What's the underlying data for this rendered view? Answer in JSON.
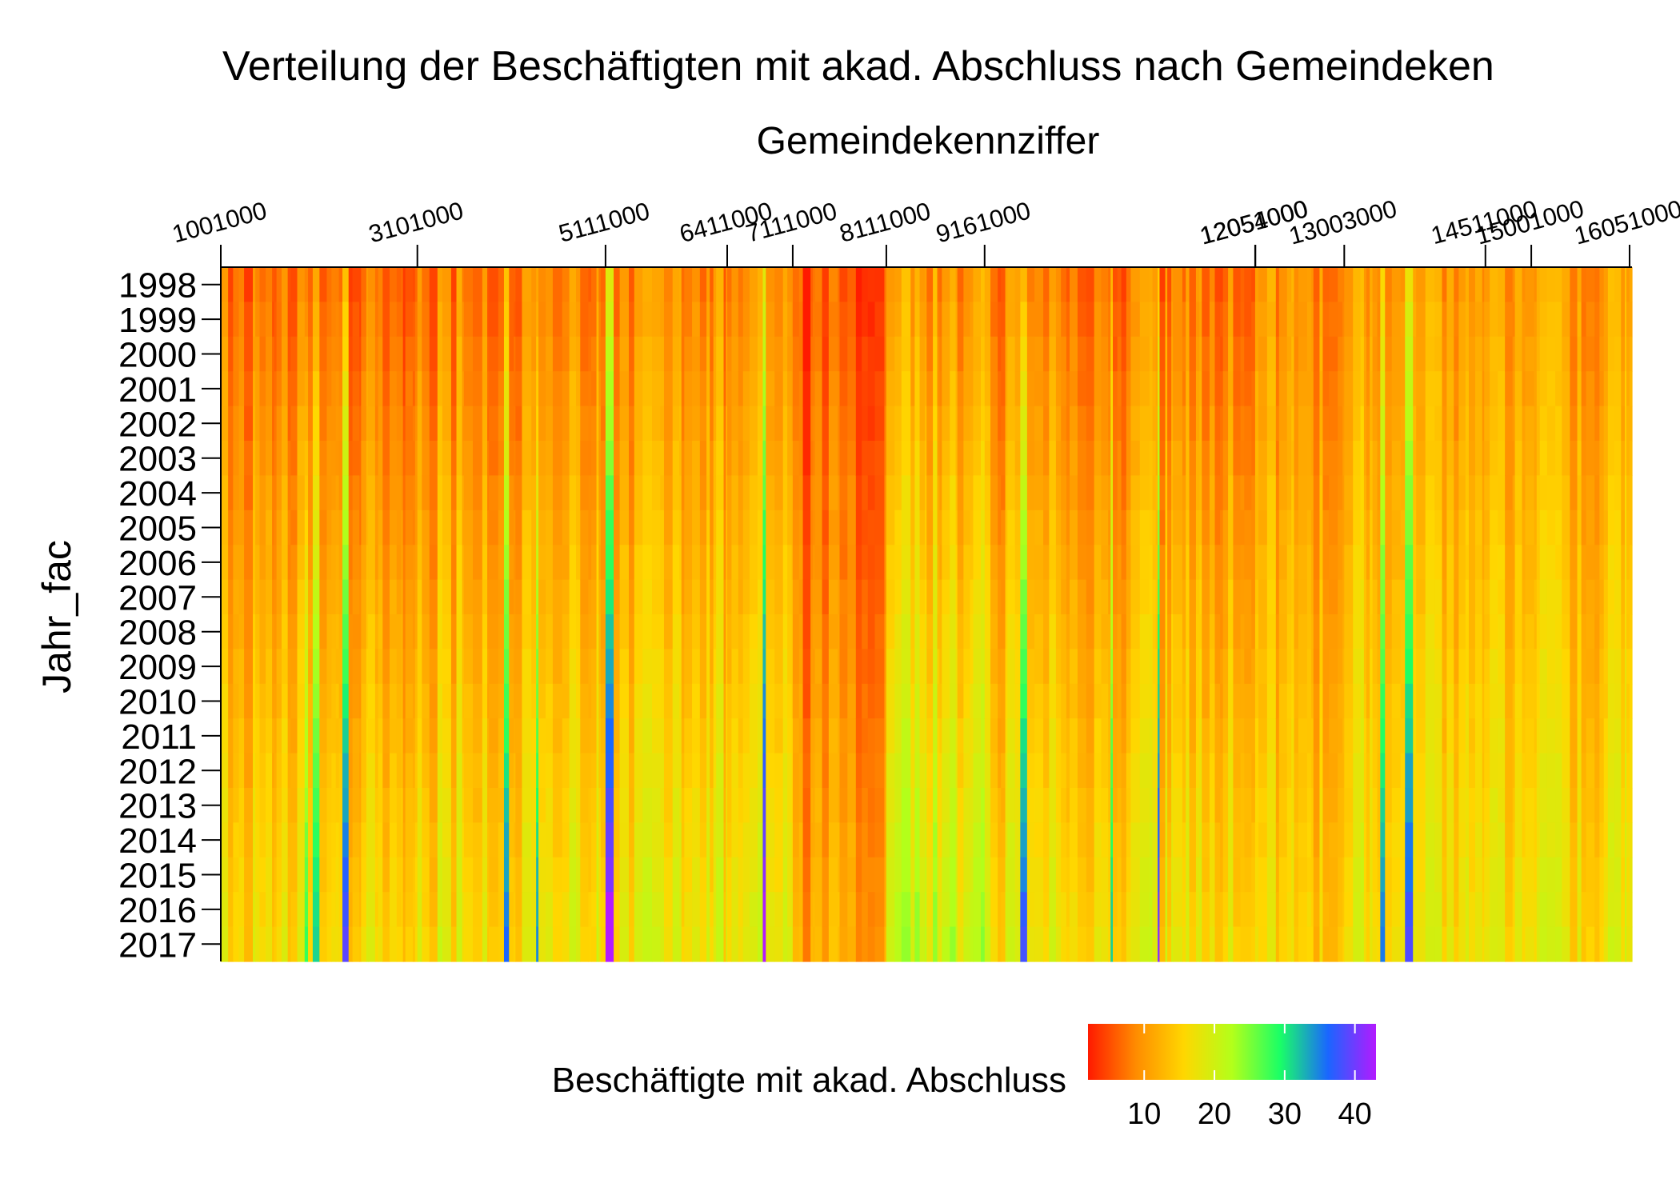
{
  "chart_data": {
    "type": "heatmap",
    "title": "Verteilung der Beschäftigten mit akad. Abschluss nach Gemeindeken",
    "xlabel": "Gemeindekennziffer",
    "ylabel": "Jahr_fac",
    "x_axis_position": "top",
    "x_tick_labels": [
      "1001000",
      "3101000",
      "5111000",
      "6411000",
      "7111000",
      "8111000",
      "9161000",
      "12051000",
      "12054000",
      "13003000",
      "14511000",
      "15001000",
      "16051000"
    ],
    "x_tick_values": [
      1001000,
      3101000,
      5111000,
      6411000,
      7111000,
      8111000,
      9161000,
      12051000,
      12054000,
      13003000,
      14511000,
      15001000,
      16051000
    ],
    "y_categories": [
      "1998",
      "1999",
      "2000",
      "2001",
      "2002",
      "2003",
      "2004",
      "2005",
      "2006",
      "2007",
      "2008",
      "2009",
      "2010",
      "2011",
      "2012",
      "2013",
      "2014",
      "2015",
      "2016",
      "2017"
    ],
    "value_range": [
      2,
      43
    ],
    "legend": {
      "title": "Beschäftigte mit akad. Abschluss",
      "ticks": [
        10,
        20,
        30,
        40
      ],
      "position": "bottom",
      "colors": [
        "#ff1a00",
        "#ff8c00",
        "#ffd700",
        "#b3ff1a",
        "#1aff66",
        "#1a66ff",
        "#b31aff"
      ]
    },
    "column_groups": [
      {
        "from": "1001000",
        "to": "3101000",
        "value_1998": 6,
        "value_2017": 15
      },
      {
        "from": "3101000",
        "to": "5111000",
        "value_1998": 7,
        "value_2017": 16
      },
      {
        "from": "5111000",
        "to": "6411000",
        "value_1998": 8,
        "value_2017": 17
      },
      {
        "from": "6411000",
        "to": "7111000",
        "value_1998": 8,
        "value_2017": 17
      },
      {
        "from": "7111000",
        "to": "8111000",
        "value_1998": 4,
        "value_2017": 10
      },
      {
        "from": "8111000",
        "to": "9161000",
        "value_1998": 9,
        "value_2017": 20
      },
      {
        "from": "9161000",
        "to": "12051000",
        "value_1998": 7,
        "value_2017": 16
      },
      {
        "from": "12051000",
        "to": "13003000",
        "value_1998": 8,
        "value_2017": 14
      },
      {
        "from": "13003000",
        "to": "16051000",
        "value_1998": 9,
        "value_2017": 16
      }
    ]
  }
}
